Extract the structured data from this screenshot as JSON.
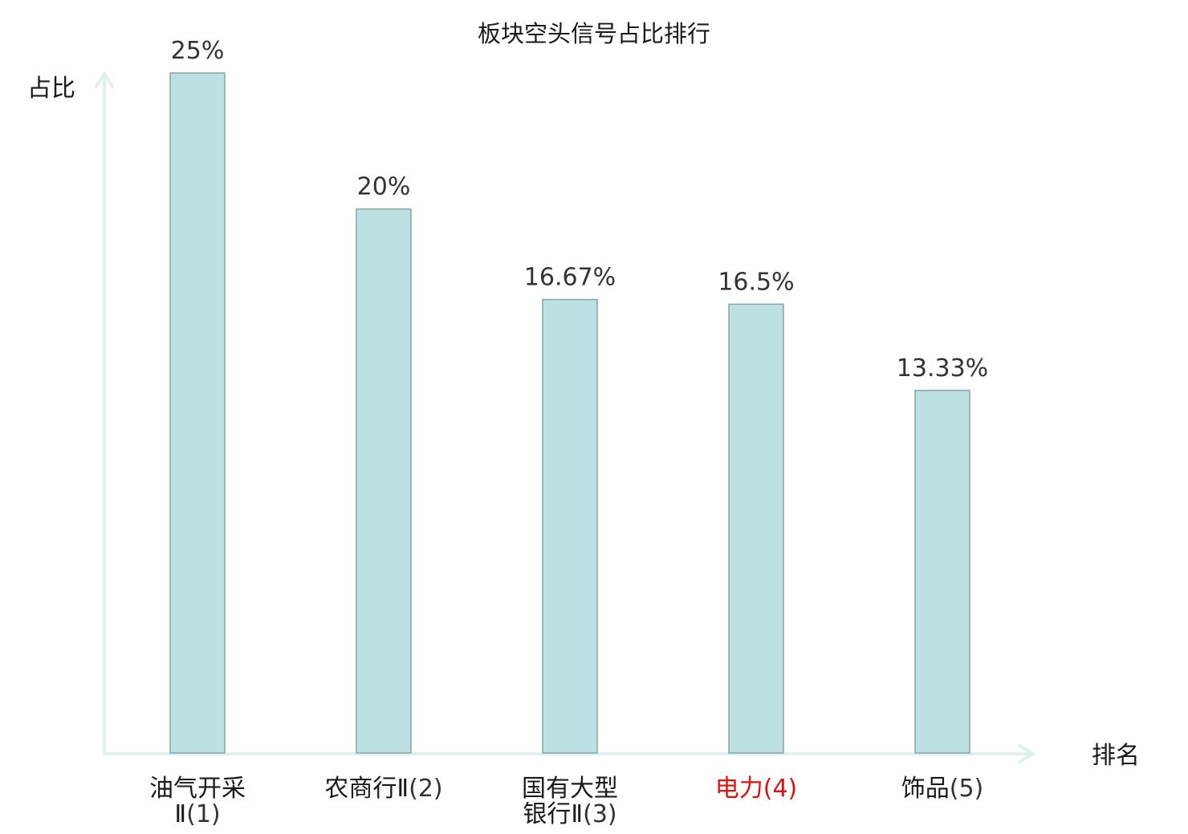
{
  "chart_data": {
    "type": "bar",
    "title": "板块空头信号占比排行",
    "xlabel": "排名",
    "ylabel": "占比",
    "ylim": [
      0,
      25
    ],
    "grid": false,
    "value_suffix": "%",
    "categories": [
      {
        "lines": [
          "油气开采",
          "Ⅱ"
        ],
        "rank": "(1)",
        "highlight": false
      },
      {
        "lines": [
          "农商行Ⅱ"
        ],
        "rank": "(2)",
        "highlight": false
      },
      {
        "lines": [
          "国有大型",
          "银行Ⅱ"
        ],
        "rank": "(3)",
        "highlight": false
      },
      {
        "lines": [
          "电力"
        ],
        "rank": "(4)",
        "highlight": true
      },
      {
        "lines": [
          "饰品"
        ],
        "rank": "(5)",
        "highlight": false
      }
    ],
    "values": [
      25,
      20,
      16.67,
      16.5,
      13.33
    ],
    "value_labels": [
      "25%",
      "20%",
      "16.67%",
      "16.5%",
      "13.33%"
    ],
    "colors": {
      "bar_fill": "#bde0e2",
      "bar_stroke": "#86a5a6",
      "axis": "#dff1ef",
      "highlight_text": "#e01010"
    }
  }
}
